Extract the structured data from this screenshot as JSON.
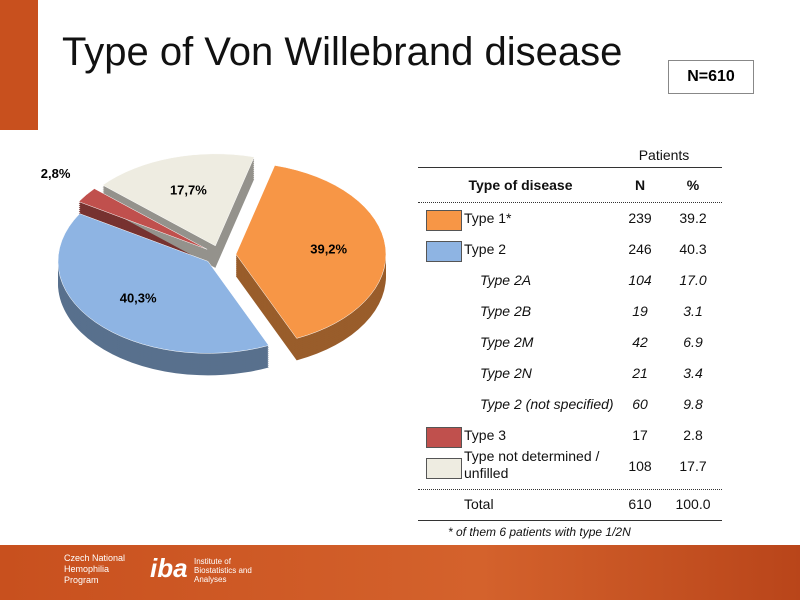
{
  "title": "Type of Von Willebrand disease",
  "n_badge": "N=610",
  "chart_data": {
    "type": "pie",
    "categories": [
      "Type 1*",
      "Type 2",
      "Type 3",
      "Type not determined / unfilled"
    ],
    "values": [
      39.2,
      40.3,
      2.8,
      17.7
    ],
    "value_labels": [
      "39,2%",
      "40,3%",
      "2,8%",
      "17,7%"
    ],
    "colors": [
      "#f79646",
      "#8eb4e3",
      "#c0504d",
      "#eeece1"
    ]
  },
  "table": {
    "group_header": "Patients",
    "columns": [
      "Type of disease",
      "N",
      "%"
    ],
    "rows": [
      {
        "cells": [
          "Type 1*",
          "239",
          "39.2"
        ],
        "swatch": "#f79646"
      },
      {
        "cells": [
          "Type 2",
          "246",
          "40.3"
        ],
        "swatch": "#8eb4e3"
      },
      {
        "cells": [
          "Type 2A",
          "104",
          "17.0"
        ],
        "italic": true
      },
      {
        "cells": [
          "Type 2B",
          "19",
          "3.1"
        ],
        "italic": true
      },
      {
        "cells": [
          "Type 2M",
          "42",
          "6.9"
        ],
        "italic": true
      },
      {
        "cells": [
          "Type 2N",
          "21",
          "3.4"
        ],
        "italic": true
      },
      {
        "cells": [
          "Type 2 (not specified)",
          "60",
          "9.8"
        ],
        "italic": true
      },
      {
        "cells": [
          "Type 3",
          "17",
          "2.8"
        ],
        "swatch": "#c0504d"
      },
      {
        "cells": [
          "Type not determined / unfilled",
          "108",
          "17.7"
        ],
        "swatch": "#eeece1"
      },
      {
        "cells": [
          "Total",
          "610",
          "100.0"
        ]
      }
    ],
    "footnote": "* of them 6 patients with type 1/2N"
  },
  "footer": {
    "program": "Czech National Hemophilia Program",
    "logo": "iba",
    "institute": "Institute of Biostatistics and Analyses"
  }
}
